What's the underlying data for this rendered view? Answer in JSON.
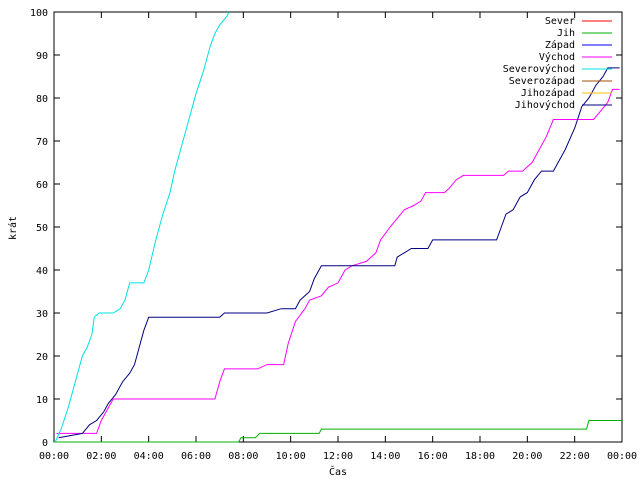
{
  "chart_data": {
    "type": "line",
    "title": "",
    "xlabel": "Čas",
    "ylabel": "krát",
    "xlim": [
      0,
      24
    ],
    "ylim": [
      0,
      100
    ],
    "x_ticks": [
      "00:00",
      "02:00",
      "04:00",
      "06:00",
      "08:00",
      "10:00",
      "12:00",
      "14:00",
      "16:00",
      "18:00",
      "20:00",
      "22:00",
      "00:00"
    ],
    "y_ticks": [
      0,
      10,
      20,
      30,
      40,
      50,
      60,
      70,
      80,
      90,
      100
    ],
    "grid": false,
    "legend_position": "top-right",
    "series": [
      {
        "name": "Sever",
        "color": "#ff0000",
        "points": []
      },
      {
        "name": "Jih",
        "color": "#00b000",
        "points": [
          [
            0,
            0
          ],
          [
            7.8,
            0
          ],
          [
            7.9,
            1
          ],
          [
            8.5,
            1
          ],
          [
            8.7,
            2
          ],
          [
            11.2,
            2
          ],
          [
            11.3,
            3
          ],
          [
            22.5,
            3
          ],
          [
            22.6,
            5
          ],
          [
            24,
            5
          ]
        ]
      },
      {
        "name": "Západ",
        "color": "#0000ff",
        "points": []
      },
      {
        "name": "Východ",
        "color": "#ff00ff",
        "points": [
          [
            0.1,
            2
          ],
          [
            1.8,
            2
          ],
          [
            2.0,
            5
          ],
          [
            2.3,
            8
          ],
          [
            2.5,
            10
          ],
          [
            6.8,
            10
          ],
          [
            7.0,
            14
          ],
          [
            7.2,
            17
          ],
          [
            8.6,
            17
          ],
          [
            9.0,
            18
          ],
          [
            9.7,
            18
          ],
          [
            9.9,
            23
          ],
          [
            10.2,
            28
          ],
          [
            10.6,
            31
          ],
          [
            10.8,
            33
          ],
          [
            11.3,
            34
          ],
          [
            11.6,
            36
          ],
          [
            12.0,
            37
          ],
          [
            12.3,
            40
          ],
          [
            12.6,
            41
          ],
          [
            13.2,
            42
          ],
          [
            13.6,
            44
          ],
          [
            13.8,
            47
          ],
          [
            14.2,
            50
          ],
          [
            14.5,
            52
          ],
          [
            14.8,
            54
          ],
          [
            15.2,
            55
          ],
          [
            15.5,
            56
          ],
          [
            15.7,
            58
          ],
          [
            16.5,
            58
          ],
          [
            16.7,
            59
          ],
          [
            17.0,
            61
          ],
          [
            17.3,
            62
          ],
          [
            19.0,
            62
          ],
          [
            19.2,
            63
          ],
          [
            19.8,
            63
          ],
          [
            20.2,
            65
          ],
          [
            20.5,
            68
          ],
          [
            20.8,
            71
          ],
          [
            21.1,
            75
          ],
          [
            22.8,
            75
          ],
          [
            23.1,
            77
          ],
          [
            23.4,
            79
          ],
          [
            23.6,
            82
          ],
          [
            23.9,
            82
          ]
        ]
      },
      {
        "name": "Severovýchod",
        "color": "#00e0e0",
        "points": [
          [
            0.05,
            0
          ],
          [
            0.3,
            3
          ],
          [
            0.6,
            8
          ],
          [
            0.9,
            14
          ],
          [
            1.2,
            20
          ],
          [
            1.4,
            22
          ],
          [
            1.6,
            25
          ],
          [
            1.7,
            29
          ],
          [
            1.9,
            30
          ],
          [
            2.5,
            30
          ],
          [
            2.8,
            31
          ],
          [
            3.0,
            33
          ],
          [
            3.2,
            37
          ],
          [
            3.8,
            37
          ],
          [
            4.0,
            40
          ],
          [
            4.3,
            47
          ],
          [
            4.6,
            53
          ],
          [
            4.9,
            58
          ],
          [
            5.1,
            63
          ],
          [
            5.4,
            69
          ],
          [
            5.7,
            75
          ],
          [
            6.0,
            81
          ],
          [
            6.3,
            86
          ],
          [
            6.6,
            92
          ],
          [
            6.8,
            95
          ],
          [
            7.0,
            97
          ],
          [
            7.3,
            99
          ],
          [
            7.4,
            100
          ]
        ]
      },
      {
        "name": "Severozápad",
        "color": "#a05000",
        "points": []
      },
      {
        "name": "Jihozápad",
        "color": "#ffc000",
        "points": []
      },
      {
        "name": "Jihovýchod",
        "color": "#000080",
        "points": [
          [
            0.2,
            1
          ],
          [
            1.2,
            2
          ],
          [
            1.5,
            4
          ],
          [
            1.8,
            5
          ],
          [
            2.1,
            7
          ],
          [
            2.3,
            9
          ],
          [
            2.6,
            11
          ],
          [
            2.9,
            14
          ],
          [
            3.2,
            16
          ],
          [
            3.4,
            18
          ],
          [
            3.6,
            22
          ],
          [
            3.8,
            26
          ],
          [
            4.0,
            29
          ],
          [
            7.0,
            29
          ],
          [
            7.2,
            30
          ],
          [
            8.8,
            30
          ],
          [
            9.0,
            30
          ],
          [
            9.6,
            31
          ],
          [
            10.2,
            31
          ],
          [
            10.4,
            33
          ],
          [
            10.8,
            35
          ],
          [
            11.0,
            38
          ],
          [
            11.3,
            41
          ],
          [
            14.4,
            41
          ],
          [
            14.5,
            43
          ],
          [
            14.8,
            44
          ],
          [
            15.1,
            45
          ],
          [
            15.8,
            45
          ],
          [
            16.0,
            47
          ],
          [
            18.7,
            47
          ],
          [
            18.9,
            50
          ],
          [
            19.1,
            53
          ],
          [
            19.4,
            54
          ],
          [
            19.7,
            57
          ],
          [
            20.0,
            58
          ],
          [
            20.3,
            61
          ],
          [
            20.6,
            63
          ],
          [
            21.1,
            63
          ],
          [
            21.3,
            65
          ],
          [
            21.6,
            68
          ],
          [
            22.0,
            73
          ],
          [
            22.3,
            78
          ],
          [
            22.6,
            80
          ],
          [
            22.9,
            83
          ],
          [
            23.2,
            85
          ],
          [
            23.4,
            87
          ],
          [
            23.9,
            87
          ]
        ]
      }
    ]
  }
}
